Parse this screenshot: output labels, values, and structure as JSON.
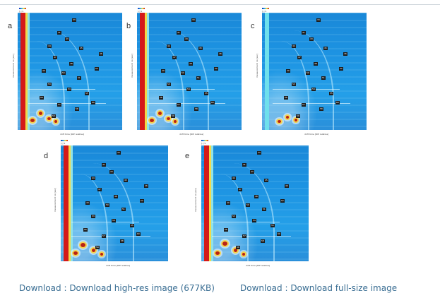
{
  "panels": [
    {
      "label": "a"
    },
    {
      "label": "b"
    },
    {
      "label": "c"
    },
    {
      "label": "d"
    },
    {
      "label": "e"
    }
  ],
  "legend_text": "[-] S",
  "y_axis_label": "measurement no [sec]",
  "x_axis_label": "drift time [RIP relative]",
  "marker_codes": [
    "33",
    "41",
    "43",
    "44",
    "45",
    "46",
    "47",
    "48",
    "49",
    "50",
    "51",
    "52",
    "53",
    "54",
    "55",
    "56",
    "57",
    "58",
    "59",
    "60"
  ],
  "colors": {
    "link": "#3a6e93",
    "plot_blue": "#1d93e2",
    "red_band": "#d41919"
  },
  "links": {
    "download_high_res": "Download : Download high-res image (677KB)",
    "download_full_size": "Download : Download full-size image"
  }
}
